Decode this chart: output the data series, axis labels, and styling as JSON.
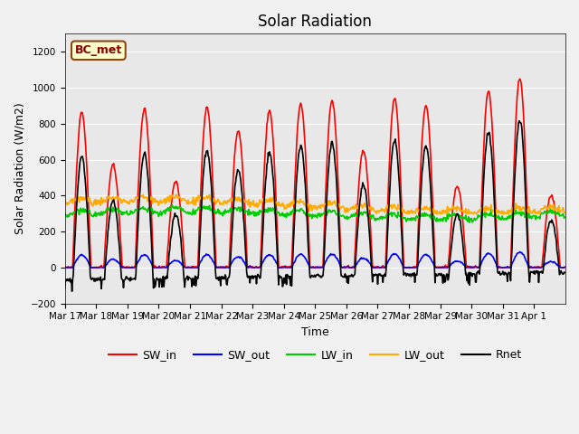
{
  "title": "Solar Radiation",
  "ylabel": "Solar Radiation (W/m2)",
  "xlabel": "Time",
  "ylim": [
    -200,
    1300
  ],
  "yticks": [
    -200,
    0,
    200,
    400,
    600,
    800,
    1000,
    1200
  ],
  "background_color": "#f0f0f0",
  "plot_bg_color": "#e8e8e8",
  "label_text": "BC_met",
  "label_bg": "#ffffcc",
  "label_border": "#8B4513",
  "series": {
    "SW_in": {
      "color": "#ff0000",
      "lw": 1.2
    },
    "SW_out": {
      "color": "#0000ff",
      "lw": 1.2
    },
    "LW_in": {
      "color": "#00cc00",
      "lw": 1.2
    },
    "LW_out": {
      "color": "#ffaa00",
      "lw": 1.2
    },
    "Rnet": {
      "color": "#000000",
      "lw": 1.2
    }
  },
  "xtick_labels": [
    "Mar 17",
    "Mar 18",
    "Mar 19",
    "Mar 20",
    "Mar 21",
    "Mar 22",
    "Mar 23",
    "Mar 24",
    "Mar 25",
    "Mar 26",
    "Mar 27",
    "Mar 28",
    "Mar 29",
    "Mar 30",
    "Mar 31",
    "Apr 1"
  ],
  "n_days": 16,
  "dt_hours": 0.5,
  "sw_peaks": [
    860,
    570,
    880,
    480,
    890,
    760,
    870,
    910,
    930,
    650,
    940,
    900,
    450,
    980,
    1050,
    400
  ]
}
